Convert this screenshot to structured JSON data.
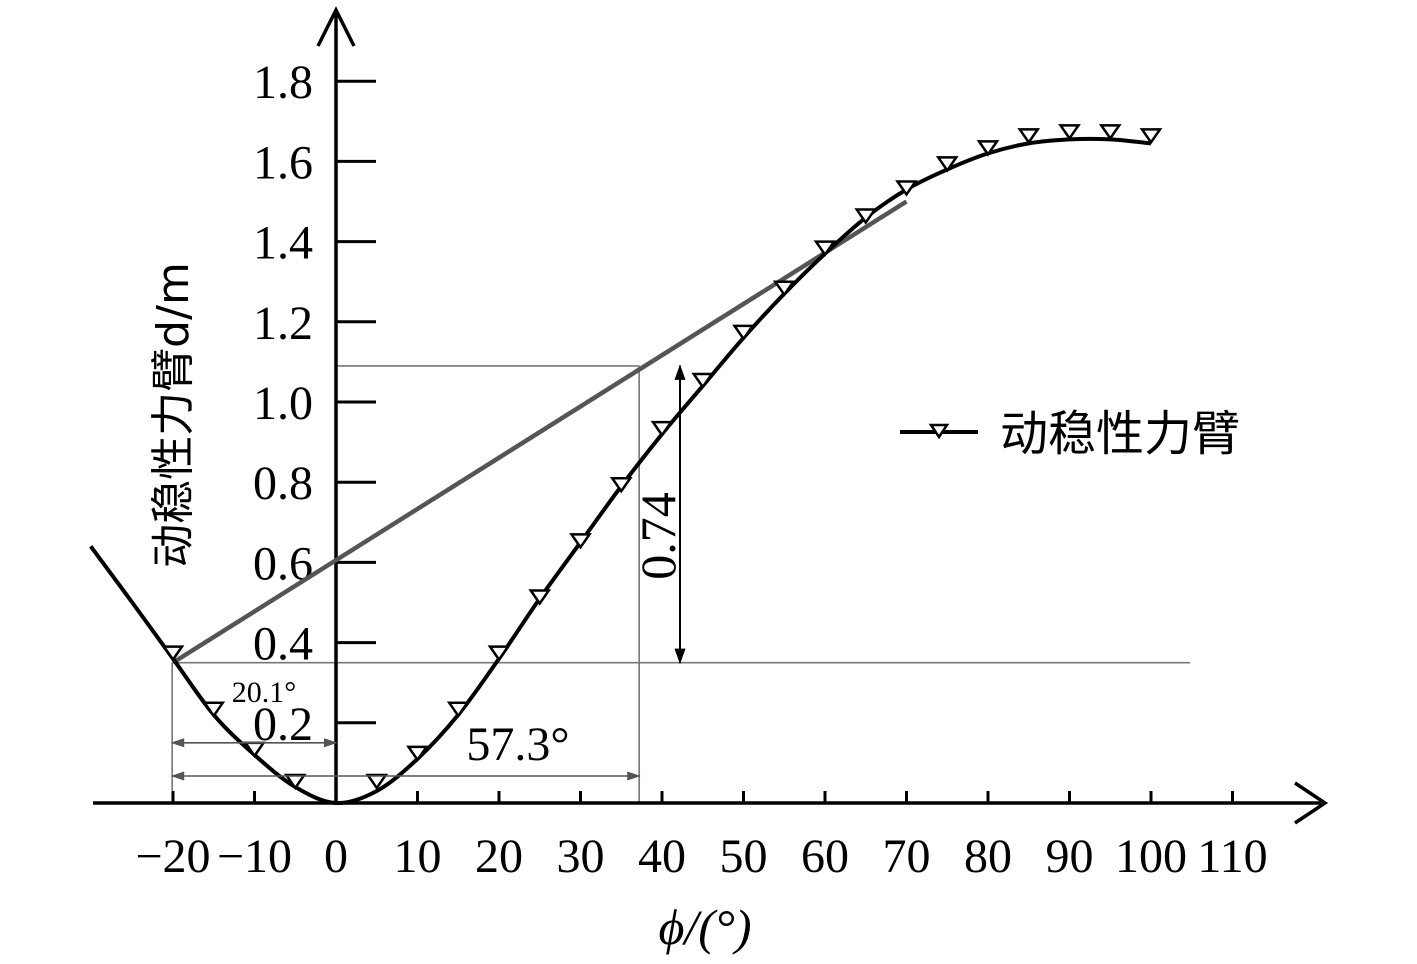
{
  "chart_data": {
    "type": "line",
    "xlabel": "ϕ/(°)",
    "ylabel": "动稳性力臂d/m",
    "xlim": [
      -25,
      122
    ],
    "ylim": [
      0,
      1.98
    ],
    "x_ticks": [
      -20,
      -10,
      0,
      10,
      20,
      30,
      40,
      50,
      60,
      70,
      80,
      90,
      100,
      110
    ],
    "x_tick_labels": [
      "−20",
      "−10",
      "0",
      "10",
      "20",
      "30",
      "40",
      "50",
      "60",
      "70",
      "80",
      "90",
      "100",
      "110"
    ],
    "y_ticks": [
      0.2,
      0.4,
      0.6,
      0.8,
      1.0,
      1.2,
      1.4,
      1.6,
      1.8
    ],
    "y_tick_labels": [
      "0.2",
      "0.4",
      "0.6",
      "0.8",
      "1.0",
      "1.2",
      "1.4",
      "1.6",
      "1.8"
    ],
    "legend": {
      "position": "right"
    },
    "series": [
      {
        "name": "动稳性力臂",
        "color": "#000000",
        "marker": "triangle-down",
        "x": [
          -20,
          -15,
          -10,
          -5,
          5,
          10,
          15,
          20,
          25,
          30,
          35,
          40,
          45,
          50,
          55,
          60,
          65,
          70,
          75,
          80,
          85,
          90,
          95,
          100
        ],
        "y": [
          0.36,
          0.22,
          0.12,
          0.04,
          0.04,
          0.11,
          0.22,
          0.36,
          0.5,
          0.64,
          0.78,
          0.92,
          1.04,
          1.16,
          1.27,
          1.37,
          1.45,
          1.52,
          1.58,
          1.62,
          1.65,
          1.66,
          1.66,
          1.65
        ]
      }
    ],
    "curve": {
      "x": [
        -30.1,
        -25,
        -20,
        -15,
        -10,
        -5,
        0,
        5,
        10,
        15,
        20,
        25,
        30,
        35,
        40,
        45,
        50,
        55,
        60,
        65,
        70,
        75,
        80,
        85,
        90,
        95,
        100
      ],
      "y": [
        0.64,
        0.5,
        0.36,
        0.22,
        0.12,
        0.04,
        0.0,
        0.03,
        0.11,
        0.22,
        0.36,
        0.51,
        0.65,
        0.79,
        0.92,
        1.04,
        1.16,
        1.27,
        1.37,
        1.46,
        1.53,
        1.58,
        1.62,
        1.645,
        1.655,
        1.655,
        1.645
      ]
    },
    "tangent_line": {
      "color": "#555555",
      "x": [
        -20,
        70
      ],
      "y": [
        0.35,
        1.5
      ]
    },
    "reference_lines": {
      "horizontal_y": [
        0.35,
        1.09
      ],
      "vertical_x": [
        -20.1,
        37.2
      ]
    },
    "annotations": [
      {
        "text": "20.1°",
        "from_x": -20.1,
        "to_x": 0,
        "y": 0.22
      },
      {
        "text": "57.3°",
        "from_x": -20.1,
        "to_x": 37.2,
        "y": 0.07
      },
      {
        "text": "0.74",
        "x": 42,
        "from_y": 0.35,
        "to_y": 1.09
      }
    ]
  }
}
